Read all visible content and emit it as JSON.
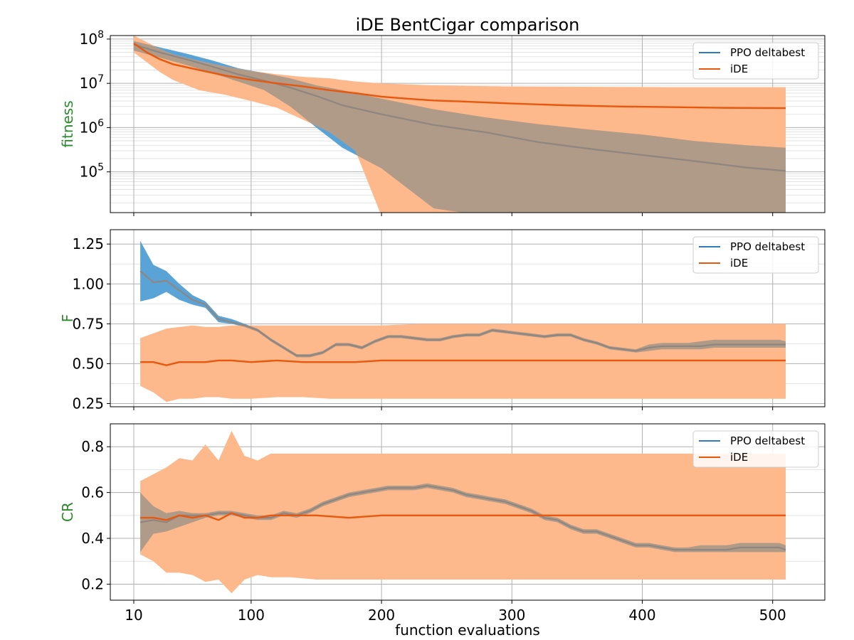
{
  "figure": {
    "title": "iDE BentCigar comparison",
    "xlabel": "function evaluations"
  },
  "colors": {
    "ppo_line": "#2f7ab8",
    "ppo_band": "#5aa3d6",
    "ide_line": "#e8570e",
    "ide_band": "#fdb98b",
    "overlap_band": "#b09a88",
    "overlap_line": "#8f8680",
    "axis_label_green": "#2b8a2b",
    "grid": "#b0b0b0"
  },
  "legend": {
    "entries": [
      "PPO deltabest",
      "iDE"
    ]
  },
  "chart_data": [
    {
      "type": "line",
      "name": "fitness",
      "ylabel": "fitness",
      "yscale": "log",
      "xlim": [
        -8,
        540
      ],
      "ylim": [
        12000,
        120000000
      ],
      "xticks": [
        10,
        100,
        200,
        300,
        400,
        500
      ],
      "yticks": [
        100000,
        1000000,
        10000000,
        100000000
      ],
      "ytick_labels": [
        {
          "base": "10",
          "exp": "5"
        },
        {
          "base": "10",
          "exp": "6"
        },
        {
          "base": "10",
          "exp": "7"
        },
        {
          "base": "10",
          "exp": "8"
        }
      ],
      "grid": true,
      "legend_position": "top-right",
      "series": [
        {
          "name": "PPO deltabest",
          "x": [
            10,
            30,
            50,
            70,
            90,
            110,
            130,
            150,
            170,
            200,
            240,
            280,
            320,
            360,
            400,
            440,
            480,
            510
          ],
          "mean": [
            75000000,
            50000000,
            35000000,
            24000000,
            16000000,
            11500000,
            8000000,
            5200000,
            3200000,
            2000000,
            1150000,
            780000,
            470000,
            330000,
            240000,
            175000,
            125000,
            105000
          ],
          "lower": [
            55000000,
            38000000,
            26000000,
            17000000,
            11000000,
            7000000,
            3000000,
            1000000,
            350000,
            120000,
            15000,
            10000,
            10000,
            10000,
            10000,
            10000,
            10000,
            10000
          ],
          "upper": [
            90000000,
            65000000,
            47000000,
            33000000,
            22000000,
            17000000,
            13000000,
            9000000,
            7000000,
            4500000,
            2600000,
            1700000,
            1200000,
            900000,
            700000,
            500000,
            400000,
            350000
          ]
        },
        {
          "name": "iDE",
          "x": [
            10,
            20,
            30,
            40,
            60,
            80,
            100,
            120,
            140,
            160,
            180,
            200,
            220,
            240,
            260,
            300,
            340,
            380,
            420,
            460,
            510
          ],
          "mean": [
            80000000,
            50000000,
            35000000,
            27000000,
            20000000,
            15000000,
            12000000,
            10000000,
            8500000,
            7000000,
            6000000,
            5000000,
            4500000,
            4100000,
            3900000,
            3500000,
            3200000,
            3000000,
            2900000,
            2800000,
            2750000
          ],
          "lower": [
            50000000,
            30000000,
            18000000,
            12000000,
            7000000,
            5500000,
            4000000,
            2800000,
            1500000,
            800000,
            300000,
            10000,
            10000,
            10000,
            10000,
            10000,
            10000,
            10000,
            10000,
            10000,
            10000
          ],
          "upper": [
            120000000,
            85000000,
            60000000,
            45000000,
            32000000,
            24000000,
            19000000,
            16000000,
            14000000,
            13000000,
            11000000,
            10000000,
            9500000,
            9000000,
            8800000,
            8500000,
            8400000,
            8300000,
            8200000,
            8200000,
            8200000
          ]
        }
      ]
    },
    {
      "type": "line",
      "name": "F",
      "ylabel": "F",
      "yscale": "linear",
      "xlim": [
        -8,
        540
      ],
      "ylim": [
        0.23,
        1.34
      ],
      "xticks": [
        10,
        100,
        200,
        300,
        400,
        500
      ],
      "yticks": [
        0.25,
        0.5,
        0.75,
        1.0,
        1.25
      ],
      "ytick_labels": [
        "0.25",
        "0.50",
        "0.75",
        "1.00",
        "1.25"
      ],
      "grid": true,
      "legend_position": "top-right",
      "series": [
        {
          "name": "PPO deltabest",
          "x": [
            15,
            25,
            35,
            45,
            55,
            65,
            75,
            85,
            95,
            105,
            115,
            125,
            135,
            145,
            155,
            165,
            175,
            185,
            195,
            205,
            215,
            225,
            235,
            245,
            255,
            265,
            275,
            285,
            295,
            305,
            315,
            325,
            335,
            345,
            355,
            365,
            375,
            385,
            395,
            405,
            415,
            425,
            435,
            445,
            455,
            465,
            475,
            485,
            495,
            505,
            510
          ],
          "mean": [
            1.08,
            1.01,
            1.02,
            0.96,
            0.9,
            0.87,
            0.78,
            0.76,
            0.74,
            0.71,
            0.65,
            0.6,
            0.55,
            0.55,
            0.57,
            0.62,
            0.62,
            0.6,
            0.64,
            0.67,
            0.67,
            0.66,
            0.65,
            0.65,
            0.67,
            0.68,
            0.68,
            0.71,
            0.7,
            0.69,
            0.68,
            0.67,
            0.68,
            0.68,
            0.65,
            0.63,
            0.6,
            0.59,
            0.58,
            0.6,
            0.61,
            0.61,
            0.61,
            0.61,
            0.62,
            0.62,
            0.62,
            0.62,
            0.62,
            0.62,
            0.62
          ],
          "lower": [
            0.89,
            0.91,
            0.95,
            0.9,
            0.87,
            0.85,
            0.76,
            0.75,
            0.73,
            0.7,
            0.64,
            0.59,
            0.54,
            0.54,
            0.56,
            0.61,
            0.61,
            0.59,
            0.63,
            0.66,
            0.66,
            0.65,
            0.64,
            0.64,
            0.66,
            0.67,
            0.67,
            0.7,
            0.69,
            0.68,
            0.67,
            0.66,
            0.67,
            0.67,
            0.64,
            0.62,
            0.59,
            0.58,
            0.57,
            0.58,
            0.59,
            0.59,
            0.59,
            0.59,
            0.6,
            0.6,
            0.6,
            0.6,
            0.6,
            0.6,
            0.6
          ],
          "upper": [
            1.27,
            1.12,
            1.08,
            1.0,
            0.93,
            0.89,
            0.8,
            0.78,
            0.75,
            0.72,
            0.66,
            0.61,
            0.56,
            0.56,
            0.58,
            0.63,
            0.63,
            0.61,
            0.65,
            0.68,
            0.68,
            0.67,
            0.66,
            0.66,
            0.68,
            0.69,
            0.69,
            0.72,
            0.71,
            0.7,
            0.69,
            0.68,
            0.69,
            0.69,
            0.66,
            0.64,
            0.61,
            0.6,
            0.59,
            0.62,
            0.63,
            0.63,
            0.63,
            0.64,
            0.65,
            0.65,
            0.65,
            0.65,
            0.65,
            0.65,
            0.64
          ]
        },
        {
          "name": "iDE",
          "x": [
            15,
            25,
            35,
            45,
            55,
            65,
            75,
            85,
            100,
            120,
            140,
            160,
            180,
            200,
            230,
            260,
            300,
            350,
            400,
            450,
            510
          ],
          "mean": [
            0.51,
            0.51,
            0.49,
            0.51,
            0.51,
            0.51,
            0.52,
            0.52,
            0.51,
            0.52,
            0.51,
            0.51,
            0.51,
            0.52,
            0.52,
            0.52,
            0.52,
            0.52,
            0.52,
            0.52,
            0.52
          ],
          "lower": [
            0.36,
            0.32,
            0.26,
            0.28,
            0.28,
            0.29,
            0.29,
            0.28,
            0.28,
            0.29,
            0.29,
            0.28,
            0.28,
            0.28,
            0.28,
            0.28,
            0.28,
            0.28,
            0.28,
            0.28,
            0.28
          ],
          "upper": [
            0.66,
            0.69,
            0.72,
            0.73,
            0.74,
            0.73,
            0.73,
            0.74,
            0.74,
            0.74,
            0.74,
            0.74,
            0.74,
            0.74,
            0.75,
            0.75,
            0.75,
            0.75,
            0.75,
            0.75,
            0.75
          ]
        }
      ]
    },
    {
      "type": "line",
      "name": "CR",
      "ylabel": "CR",
      "yscale": "linear",
      "xlim": [
        -8,
        540
      ],
      "ylim": [
        0.13,
        0.9
      ],
      "xticks": [
        10,
        100,
        200,
        300,
        400,
        500
      ],
      "yticks": [
        0.2,
        0.4,
        0.6,
        0.8
      ],
      "ytick_labels": [
        "0.2",
        "0.4",
        "0.6",
        "0.8"
      ],
      "grid": true,
      "legend_position": "top-right",
      "series": [
        {
          "name": "PPO deltabest",
          "x": [
            15,
            25,
            35,
            45,
            55,
            65,
            75,
            85,
            95,
            105,
            115,
            125,
            135,
            145,
            155,
            165,
            175,
            185,
            195,
            205,
            215,
            225,
            235,
            245,
            255,
            265,
            275,
            285,
            295,
            305,
            315,
            325,
            335,
            345,
            355,
            365,
            375,
            385,
            395,
            405,
            415,
            425,
            435,
            445,
            455,
            465,
            475,
            485,
            495,
            505,
            510
          ],
          "mean": [
            0.47,
            0.48,
            0.47,
            0.5,
            0.5,
            0.5,
            0.51,
            0.51,
            0.5,
            0.49,
            0.49,
            0.51,
            0.5,
            0.52,
            0.55,
            0.57,
            0.59,
            0.6,
            0.61,
            0.62,
            0.62,
            0.62,
            0.63,
            0.62,
            0.61,
            0.59,
            0.58,
            0.57,
            0.56,
            0.54,
            0.52,
            0.49,
            0.48,
            0.45,
            0.43,
            0.43,
            0.41,
            0.39,
            0.37,
            0.37,
            0.36,
            0.35,
            0.35,
            0.35,
            0.35,
            0.35,
            0.36,
            0.36,
            0.36,
            0.36,
            0.35
          ],
          "lower": [
            0.34,
            0.42,
            0.43,
            0.45,
            0.47,
            0.49,
            0.5,
            0.5,
            0.49,
            0.48,
            0.48,
            0.5,
            0.49,
            0.51,
            0.54,
            0.56,
            0.58,
            0.59,
            0.6,
            0.61,
            0.61,
            0.61,
            0.62,
            0.61,
            0.6,
            0.58,
            0.57,
            0.56,
            0.55,
            0.53,
            0.51,
            0.48,
            0.47,
            0.44,
            0.42,
            0.42,
            0.4,
            0.38,
            0.36,
            0.36,
            0.35,
            0.34,
            0.34,
            0.34,
            0.34,
            0.34,
            0.34,
            0.34,
            0.34,
            0.34,
            0.34
          ],
          "upper": [
            0.6,
            0.54,
            0.51,
            0.52,
            0.51,
            0.51,
            0.52,
            0.52,
            0.51,
            0.5,
            0.5,
            0.52,
            0.51,
            0.53,
            0.56,
            0.58,
            0.6,
            0.61,
            0.62,
            0.63,
            0.63,
            0.63,
            0.64,
            0.63,
            0.62,
            0.6,
            0.59,
            0.58,
            0.57,
            0.55,
            0.53,
            0.5,
            0.49,
            0.46,
            0.44,
            0.44,
            0.42,
            0.4,
            0.38,
            0.38,
            0.37,
            0.36,
            0.36,
            0.37,
            0.37,
            0.37,
            0.38,
            0.38,
            0.38,
            0.38,
            0.37
          ]
        },
        {
          "name": "iDE",
          "x": [
            15,
            25,
            35,
            45,
            55,
            65,
            75,
            85,
            95,
            105,
            115,
            130,
            150,
            175,
            200,
            250,
            300,
            350,
            400,
            450,
            510
          ],
          "mean": [
            0.49,
            0.49,
            0.48,
            0.5,
            0.49,
            0.5,
            0.48,
            0.51,
            0.49,
            0.49,
            0.5,
            0.5,
            0.5,
            0.49,
            0.5,
            0.5,
            0.5,
            0.5,
            0.5,
            0.5,
            0.5
          ],
          "lower": [
            0.33,
            0.3,
            0.25,
            0.25,
            0.24,
            0.21,
            0.22,
            0.16,
            0.22,
            0.24,
            0.23,
            0.23,
            0.22,
            0.22,
            0.22,
            0.22,
            0.22,
            0.22,
            0.22,
            0.22,
            0.22
          ],
          "upper": [
            0.65,
            0.68,
            0.71,
            0.75,
            0.74,
            0.81,
            0.74,
            0.87,
            0.76,
            0.74,
            0.77,
            0.77,
            0.77,
            0.77,
            0.77,
            0.77,
            0.77,
            0.77,
            0.77,
            0.77,
            0.77
          ]
        }
      ]
    }
  ]
}
